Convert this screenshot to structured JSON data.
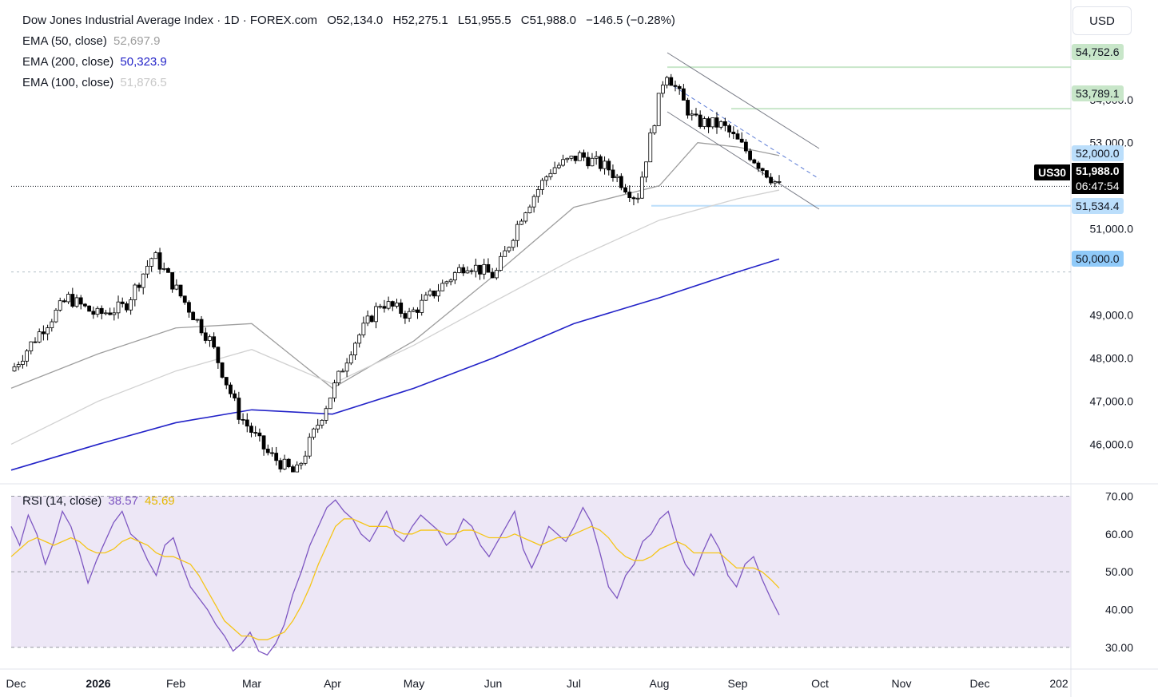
{
  "legend": {
    "title": "Dow Jones Industrial Average Index · 1D · FOREX.com",
    "open": "O52,134.0",
    "high": "H52,275.1",
    "low": "L51,955.5",
    "close": "C51,988.0",
    "change": "−146.5 (−0.28%)",
    "ema50_label": "EMA (50, close)",
    "ema50_value": "52,697.9",
    "ema200_label": "EMA (200, close)",
    "ema200_value": "50,323.9",
    "ema100_label": "EMA (100, close)",
    "ema100_value": "51,876.5"
  },
  "currency": "USD",
  "rsi_legend": {
    "label": "RSI (14, close)",
    "rsi_value": "38.57",
    "ma_value": "45.69"
  },
  "price_tags": {
    "symbol": "US30",
    "last": "51,988.0",
    "countdown": "06:47:54",
    "level_54752": "54,752.6",
    "level_53789": "53,789.1",
    "level_52000": "52,000.0",
    "level_51534": "51,534.4",
    "level_50000": "50,000.0"
  },
  "colors": {
    "up_candle": "#ffffff",
    "down_candle": "#000000",
    "ema50": "#9e9e9e",
    "ema100": "#d1d1d1",
    "ema200": "#2323c8",
    "rsi": "#7e57c2",
    "rsi_ma": "#f5c518",
    "rsi_band": "#ede7f6",
    "resistance_lines": "#c8e6c9",
    "support_lines": "#bbdefb",
    "channel": "#787b86"
  },
  "chart_data": [
    {
      "type": "candlestick",
      "title": "Dow Jones Industrial Average Index · 1D · FOREX.com",
      "x_tick_labels": [
        "Dec",
        "2026",
        "Feb",
        "Mar",
        "Apr",
        "May",
        "Jun",
        "Jul",
        "Aug",
        "Sep",
        "Oct",
        "Nov",
        "Dec",
        "202"
      ],
      "y_tick_labels": [
        "46,000.0",
        "47,000.0",
        "48,000.0",
        "49,000.0",
        "51,000.0",
        "53,000.0",
        "54,000.0"
      ],
      "ylim": [
        45100,
        55200
      ],
      "grid": false,
      "horizontal_levels": [
        54752.6,
        53789.1,
        52000.0,
        51534.4,
        50000.0
      ],
      "last_price": 51988.0,
      "approx_close_path": [
        {
          "x": "Dec",
          "y": 47700
        },
        {
          "x": "early Jan",
          "y": 48600
        },
        {
          "x": "mid Jan",
          "y": 49400
        },
        {
          "x": "late Jan",
          "y": 49000
        },
        {
          "x": "Feb",
          "y": 49200
        },
        {
          "x": "early Feb",
          "y": 50400
        },
        {
          "x": "mid Feb",
          "y": 49400
        },
        {
          "x": "Mar",
          "y": 48400
        },
        {
          "x": "mid Mar",
          "y": 46700
        },
        {
          "x": "late Mar",
          "y": 45800
        },
        {
          "x": "Apr",
          "y": 45300
        },
        {
          "x": "early Apr",
          "y": 46800
        },
        {
          "x": "mid Apr",
          "y": 48300
        },
        {
          "x": "late Apr",
          "y": 49300
        },
        {
          "x": "May",
          "y": 49000
        },
        {
          "x": "mid May",
          "y": 49600
        },
        {
          "x": "late May",
          "y": 50200
        },
        {
          "x": "Jun",
          "y": 49900
        },
        {
          "x": "mid Jun",
          "y": 51400
        },
        {
          "x": "late Jun",
          "y": 52400
        },
        {
          "x": "Jul",
          "y": 52700
        },
        {
          "x": "mid Jul",
          "y": 52400
        },
        {
          "x": "late Jul",
          "y": 51700
        },
        {
          "x": "Aug",
          "y": 54700
        },
        {
          "x": "mid Aug",
          "y": 53500
        },
        {
          "x": "late Aug",
          "y": 53400
        },
        {
          "x": "Sep",
          "y": 52700
        },
        {
          "x": "mid Sep",
          "y": 51988
        }
      ],
      "series": [
        {
          "name": "EMA (50, close)",
          "last": 52697.9,
          "path": [
            [
              "Dec",
              47300
            ],
            [
              "Jan",
              48100
            ],
            [
              "Feb",
              48700
            ],
            [
              "Mar",
              48800
            ],
            [
              "Apr",
              47300
            ],
            [
              "May",
              48400
            ],
            [
              "Jun",
              49900
            ],
            [
              "Jul",
              51500
            ],
            [
              "Aug",
              52000
            ],
            [
              "mid Aug",
              53000
            ],
            [
              "Sep",
              52900
            ],
            [
              "mid Sep",
              52700
            ]
          ]
        },
        {
          "name": "EMA (100, close)",
          "last": 51876.5,
          "path": [
            [
              "Dec",
              46000
            ],
            [
              "Jan",
              47000
            ],
            [
              "Feb",
              47700
            ],
            [
              "Mar",
              48200
            ],
            [
              "Apr",
              47400
            ],
            [
              "May",
              48300
            ],
            [
              "Jun",
              49300
            ],
            [
              "Jul",
              50300
            ],
            [
              "Aug",
              51200
            ],
            [
              "Sep",
              51700
            ],
            [
              "mid Sep",
              51900
            ]
          ]
        },
        {
          "name": "EMA (200, close)",
          "last": 50323.9,
          "path": [
            [
              "Dec",
              45400
            ],
            [
              "Jan",
              46000
            ],
            [
              "Feb",
              46500
            ],
            [
              "Mar",
              46800
            ],
            [
              "Apr",
              46700
            ],
            [
              "May",
              47300
            ],
            [
              "Jun",
              48000
            ],
            [
              "Jul",
              48800
            ],
            [
              "Aug",
              49400
            ],
            [
              "Sep",
              50000
            ],
            [
              "mid Sep",
              50300
            ]
          ]
        }
      ]
    },
    {
      "type": "line",
      "title": "RSI (14, close)",
      "y_tick_labels": [
        "30.00",
        "40.00",
        "50.00",
        "60.00",
        "70.00"
      ],
      "ylim": [
        27,
        72
      ],
      "band": [
        30,
        70
      ],
      "midline": 50,
      "series": [
        {
          "name": "RSI (14, close)",
          "last": 38.57,
          "values": [
            62,
            57,
            65,
            60,
            52,
            58,
            66,
            62,
            55,
            47,
            53,
            58,
            63,
            66,
            60,
            58,
            53,
            49,
            57,
            59,
            52,
            46,
            43,
            40,
            36,
            33,
            29,
            31,
            34,
            29,
            28,
            31,
            36,
            44,
            50,
            57,
            62,
            67,
            69,
            66,
            64,
            60,
            58,
            62,
            66,
            60,
            58,
            62,
            65,
            63,
            61,
            57,
            59,
            64,
            62,
            57,
            54,
            58,
            62,
            66,
            56,
            51,
            56,
            62,
            60,
            58,
            62,
            67,
            63,
            55,
            46,
            43,
            49,
            52,
            58,
            60,
            64,
            66,
            58,
            52,
            49,
            55,
            60,
            56,
            49,
            46,
            52,
            54,
            48,
            43,
            38.57
          ]
        },
        {
          "name": "RSI MA",
          "last": 45.69,
          "values": [
            54,
            56,
            58,
            59,
            58,
            57,
            58,
            59,
            58,
            56,
            55,
            55,
            56,
            58,
            59,
            58,
            57,
            55,
            54,
            54,
            53,
            52,
            49,
            45,
            41,
            37,
            35,
            33,
            33,
            32,
            32,
            33,
            34,
            37,
            41,
            46,
            52,
            57,
            62,
            64,
            64,
            63,
            62,
            62,
            62,
            61,
            60,
            60,
            61,
            61,
            61,
            60,
            60,
            61,
            61,
            60,
            59,
            59,
            59,
            60,
            59,
            58,
            57,
            58,
            59,
            59,
            60,
            61,
            62,
            61,
            59,
            56,
            54,
            53,
            53,
            54,
            56,
            57,
            58,
            57,
            55,
            55,
            55,
            55,
            53,
            51,
            51,
            51,
            50,
            48,
            45.69
          ]
        }
      ]
    }
  ]
}
